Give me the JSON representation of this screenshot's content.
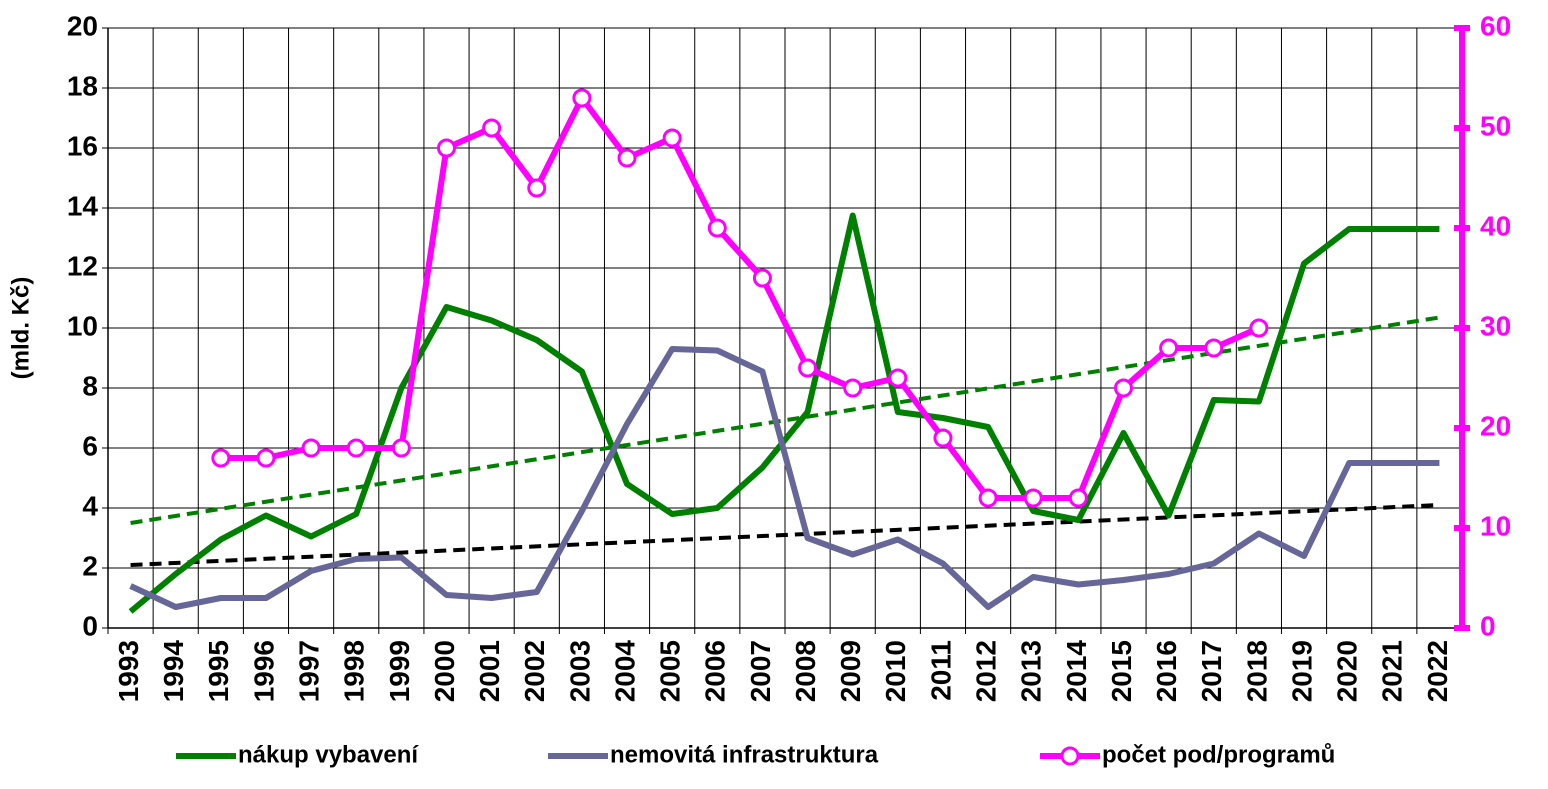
{
  "chart_data": {
    "type": "line",
    "y_label": "(mld. Kč)",
    "categories": [
      "1993",
      "1994",
      "1995",
      "1996",
      "1997",
      "1998",
      "1999",
      "2000",
      "2001",
      "2002",
      "2003",
      "2004",
      "2005",
      "2006",
      "2007",
      "2008",
      "2009",
      "2010",
      "2011",
      "2012",
      "2013",
      "2014",
      "2015",
      "2016",
      "2017",
      "2018",
      "2019",
      "2020",
      "2021",
      "2022"
    ],
    "series": [
      {
        "name": "nákup vybavení",
        "color": "#008000",
        "values": [
          0.55,
          1.8,
          2.95,
          3.75,
          3.05,
          3.8,
          8.0,
          10.7,
          10.25,
          9.6,
          8.55,
          4.8,
          3.8,
          4.0,
          5.35,
          7.2,
          13.75,
          7.2,
          7.0,
          6.7,
          3.9,
          3.6,
          6.5,
          3.75,
          7.6,
          7.55,
          12.15,
          13.3,
          13.3,
          13.3
        ]
      },
      {
        "name": "nemovitá infrastruktura",
        "color": "#666699",
        "values": [
          1.4,
          0.7,
          1.0,
          1.0,
          1.9,
          2.3,
          2.35,
          1.1,
          1.0,
          1.2,
          3.9,
          6.8,
          9.3,
          9.25,
          8.55,
          3.0,
          2.45,
          2.95,
          2.15,
          0.7,
          1.7,
          1.45,
          1.6,
          1.8,
          2.15,
          3.15,
          2.4,
          5.5,
          5.5,
          5.5
        ]
      },
      {
        "name": "počet pod/programů",
        "color": "#ff00ff",
        "axis": "y2",
        "markers": true,
        "values": [
          null,
          null,
          17,
          17,
          18,
          18,
          18,
          48,
          50,
          44,
          53,
          47,
          49,
          40,
          35,
          26,
          24,
          25,
          19,
          13,
          13,
          13,
          24,
          28,
          28,
          30,
          null,
          null,
          null,
          null
        ]
      }
    ],
    "trendlines": [
      {
        "color": "#008000",
        "values": [
          3.5,
          10.35
        ]
      },
      {
        "color": "#000000",
        "values": [
          2.1,
          4.1
        ]
      }
    ],
    "ylim": [
      0,
      20
    ],
    "yticks": [
      0,
      2,
      4,
      6,
      8,
      10,
      12,
      14,
      16,
      18,
      20
    ],
    "y2lim": [
      0,
      60
    ],
    "y2ticks": [
      0,
      10,
      20,
      30,
      40,
      50,
      60
    ],
    "y2color": "#ff00ff",
    "grid": true
  }
}
